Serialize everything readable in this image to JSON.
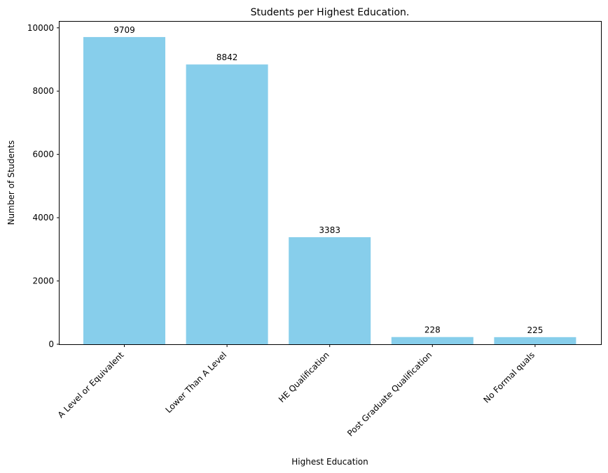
{
  "chart_data": {
    "type": "bar",
    "title": "Students per Highest Education.",
    "xlabel": "Highest Education",
    "ylabel": "Number of Students",
    "categories": [
      "A Level or Equivalent",
      "Lower Than A Level",
      "HE Qualification",
      "Post Graduate Qualification",
      "No Formal quals"
    ],
    "values": [
      9709,
      8842,
      3383,
      228,
      225
    ],
    "data_labels": [
      "9709",
      "8842",
      "3383",
      "228",
      "225"
    ],
    "ylim": [
      0,
      10194
    ],
    "yticks": [
      0,
      2000,
      4000,
      6000,
      8000,
      10000
    ],
    "ytick_labels": [
      "0",
      "2000",
      "4000",
      "6000",
      "8000",
      "10000"
    ],
    "grid": false,
    "bar_color": "#87CEEB"
  }
}
